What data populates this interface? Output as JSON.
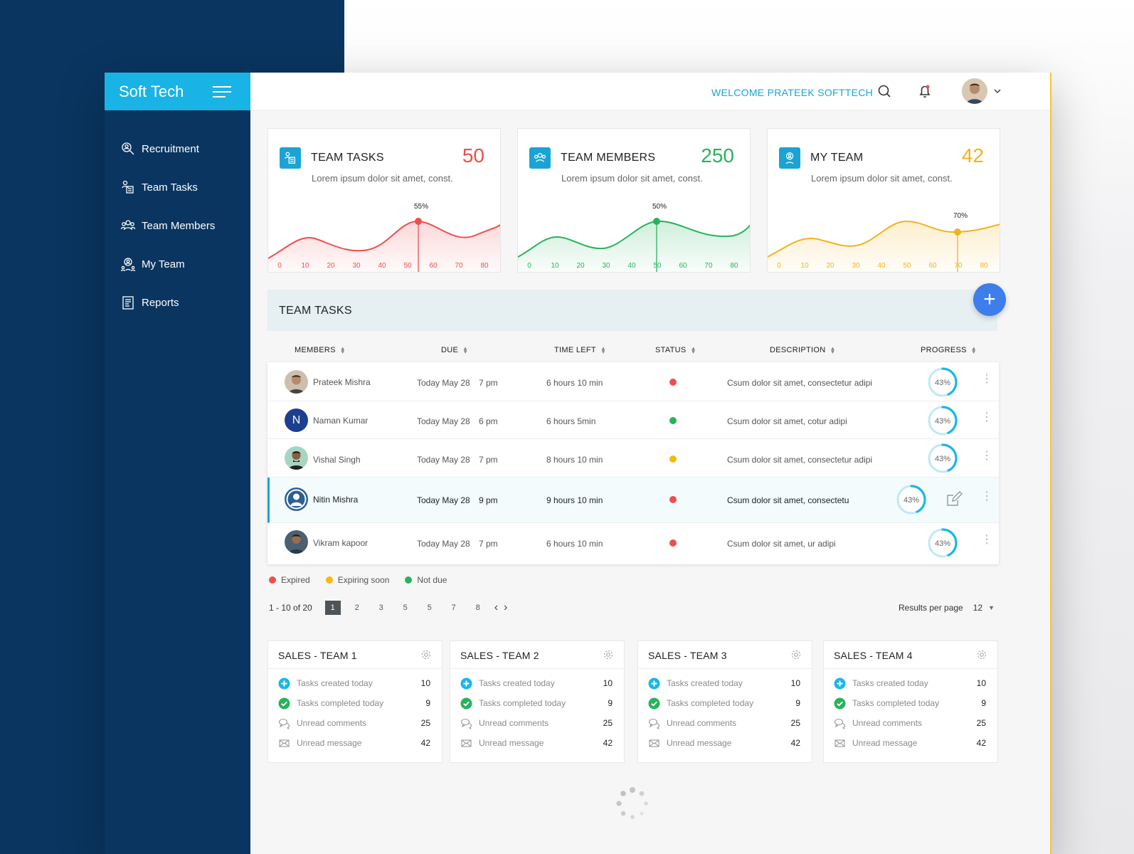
{
  "app": {
    "brand": "Soft Tech"
  },
  "sidebar": {
    "items": [
      {
        "label": "Recruitment",
        "icon": "recruitment-icon"
      },
      {
        "label": "Team Tasks",
        "icon": "team-tasks-icon"
      },
      {
        "label": "Team Members",
        "icon": "team-members-icon"
      },
      {
        "label": "My Team",
        "icon": "my-team-icon"
      },
      {
        "label": "Reports",
        "icon": "reports-icon"
      }
    ]
  },
  "topbar": {
    "welcome": "WELCOME PRATEEK SOFTTECH"
  },
  "stats": [
    {
      "title": "TEAM TASKS",
      "value": "50",
      "desc": "Lorem ipsum dolor sit amet, const.",
      "color": "#f04d4d",
      "peak": "55%",
      "ticks": [
        "0",
        "10",
        "20",
        "30",
        "40",
        "50",
        "60",
        "70",
        "80"
      ]
    },
    {
      "title": "TEAM MEMBERS",
      "value": "250",
      "desc": "Lorem ipsum dolor sit amet, const.",
      "color": "#27b35c",
      "peak": "50%",
      "ticks": [
        "0",
        "10",
        "20",
        "30",
        "40",
        "50",
        "60",
        "70",
        "80"
      ]
    },
    {
      "title": "MY TEAM",
      "value": "42",
      "desc": "Lorem ipsum dolor sit amet, const.",
      "color": "#f0b41c",
      "peak": "70%",
      "ticks": [
        "0",
        "10",
        "20",
        "30",
        "40",
        "50",
        "60",
        "70",
        "80"
      ]
    }
  ],
  "team_tasks": {
    "title": "TEAM TASKS",
    "add_label": "+",
    "columns": [
      "MEMBERS",
      "DUE",
      "TIME LEFT",
      "STATUS",
      "DESCRIPTION",
      "PROGRESS"
    ],
    "rows": [
      {
        "name": "Prateek Mishra",
        "due": "Today May 28",
        "time": "7 pm",
        "left": "6 hours 10 min",
        "status": "expired",
        "desc": "Csum dolor sit amet, consectetur adipi",
        "progress": "43%"
      },
      {
        "name": "Naman Kumar",
        "initial": "N",
        "due": "Today May 28",
        "time": "6 pm",
        "left": "6 hours  5min",
        "status": "not-due",
        "desc": "Csum dolor sit amet, cotur adipi",
        "progress": "43%"
      },
      {
        "name": "Vishal Singh",
        "due": "Today May 28",
        "time": "7 pm",
        "left": "8 hours 10 min",
        "status": "expiring",
        "desc": "Csum dolor sit amet, consectetur adipi",
        "progress": "43%"
      },
      {
        "name": "Nitin Mishra",
        "due": "Today May 28",
        "time": "9 pm",
        "left": "9 hours 10 min",
        "status": "expired",
        "desc": "Csum dolor sit amet, consectetu",
        "progress": "43%"
      },
      {
        "name": "Vikram kapoor",
        "due": "Today May 28",
        "time": "7 pm",
        "left": "6 hours 10 min",
        "status": "expired",
        "desc": "Csum dolor sit amet, ur adipi",
        "progress": "43%"
      }
    ],
    "progress_fraction": 0.43,
    "status_colors": {
      "expired": "#f04d4d",
      "expiring": "#f5b90f",
      "not-due": "#27b35c"
    }
  },
  "legend": [
    {
      "label": "Expired",
      "color": "#f04d4d"
    },
    {
      "label": "Expiring soon",
      "color": "#f5b90f"
    },
    {
      "label": "Not due",
      "color": "#27b35c"
    }
  ],
  "pagination": {
    "range": "1 - 10 of 20",
    "pages": [
      "1",
      "2",
      "3",
      "5",
      "5",
      "7",
      "8"
    ],
    "current": "1",
    "results_label": "Results per page",
    "results_value": "12"
  },
  "sales": [
    {
      "title": "SALES - TEAM 1"
    },
    {
      "title": "SALES - TEAM 2"
    },
    {
      "title": "SALES - TEAM 3"
    },
    {
      "title": "SALES - TEAM 4"
    }
  ],
  "sales_rows": [
    {
      "label": "Tasks created today",
      "value": "10",
      "icon": "plus-circle-icon"
    },
    {
      "label": "Tasks completed today",
      "value": "9",
      "icon": "check-circle-icon"
    },
    {
      "label": "Unread comments",
      "value": "25",
      "icon": "comments-icon"
    },
    {
      "label": "Unread message",
      "value": "42",
      "icon": "envelope-icon"
    }
  ]
}
